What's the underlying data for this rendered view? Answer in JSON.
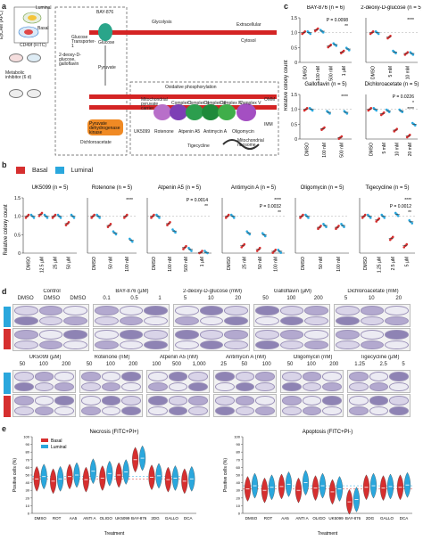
{
  "panel_labels": {
    "a": "a",
    "b": "b",
    "c": "c",
    "d": "d",
    "e": "e"
  },
  "panel_a": {
    "flow_labels": [
      "Luminal",
      "Basal",
      "CD49f (FITC)",
      "EpCAM (APC)"
    ],
    "side_labels": [
      "Metabolic inhibitor (6 d)"
    ],
    "membrane_labels": [
      "Extracellular",
      "Cytosol",
      "OMM",
      "IMM"
    ],
    "pathway_labels": [
      "Glycolysis",
      "Oxidative phosphorylation",
      "Pyruvate",
      "Glucose",
      "Glucose Transporter-1"
    ],
    "inhibitors": [
      "BAY-876",
      "2-deoxy-D-glucose, galloflavin",
      "Dichloroacetate",
      "UK5099",
      "Rotenone",
      "Atpenin A5",
      "Antimycin A",
      "Oligomycin",
      "Tigecycline"
    ],
    "complex_labels": [
      "Mitochondrial pyruvate carrier",
      "Complex I",
      "Complex II",
      "Complex III",
      "Complex IV",
      "Complex V",
      "Mitochondrial ribosome"
    ],
    "enzyme_label": "Pyruvate dehydrogenase kinase"
  },
  "legend": {
    "basal": "Basal",
    "luminal": "Luminal",
    "basal_color": "#d62f2f",
    "luminal_color": "#2aa7dd"
  },
  "chart_data": [
    {
      "id": "b",
      "type": "scatter",
      "ylabel": "Relative colony count",
      "ylim": [
        0,
        1.5
      ],
      "yticks": [
        "0",
        "0.5",
        "1.0",
        "1.5"
      ],
      "subplots": [
        {
          "title": "UK5099 (n = 5)",
          "categories": [
            "DMSO",
            "12.5 µM",
            "25 µM",
            "50 µM"
          ],
          "basal": [
            1.0,
            1.05,
            1.0,
            0.8
          ],
          "luminal": [
            1.0,
            1.0,
            1.0,
            1.0
          ],
          "annotations": []
        },
        {
          "title": "Rotenone (n = 5)",
          "categories": [
            "DMSO",
            "50 nM",
            "100 nM"
          ],
          "basal": [
            1.0,
            0.75,
            1.0
          ],
          "luminal": [
            1.0,
            0.55,
            0.35
          ],
          "annotations": [
            "****"
          ]
        },
        {
          "title": "Atpenin A5 (n = 5)",
          "categories": [
            "DMSO",
            "100 nM",
            "500 nM",
            "1 µM"
          ],
          "basal": [
            1.0,
            0.8,
            0.15,
            0.02
          ],
          "luminal": [
            1.0,
            0.6,
            0.1,
            0.02
          ],
          "annotations": [
            "P = 0.0014",
            "**"
          ]
        },
        {
          "title": "Antimycin A (n = 5)",
          "categories": [
            "DMSO",
            "25 nM",
            "50 nM",
            "100 nM"
          ],
          "basal": [
            1.0,
            0.2,
            0.1,
            0.05
          ],
          "luminal": [
            1.0,
            0.55,
            0.5,
            0.05
          ],
          "annotations": [
            "****",
            "P = 0.0032",
            "**"
          ]
        },
        {
          "title": "Oligomycin (n = 5)",
          "categories": [
            "DMSO",
            "50 nM",
            "100 nM"
          ],
          "basal": [
            1.0,
            0.7,
            0.7
          ],
          "luminal": [
            1.0,
            0.75,
            0.75
          ],
          "annotations": []
        },
        {
          "title": "Tigecycline (n = 5)",
          "categories": [
            "DMSO",
            "1.25 µM",
            "2.5 µM",
            "5 µM"
          ],
          "basal": [
            1.0,
            0.9,
            0.4,
            0.2
          ],
          "luminal": [
            1.0,
            1.0,
            1.05,
            0.85
          ],
          "annotations": [
            "****",
            "P = 0.0012",
            "**"
          ]
        }
      ]
    },
    {
      "id": "c",
      "type": "scatter",
      "ylabel": "Relative colony count",
      "ylim": [
        0,
        1.5
      ],
      "yticks": [
        "0",
        "0.5",
        "1.0",
        "1.5"
      ],
      "subplots": [
        {
          "title": "BAY-876 (n = 6)",
          "categories": [
            "DMSO",
            "100 nM",
            "500 nM",
            "1 µM"
          ],
          "basal": [
            1.0,
            1.1,
            0.55,
            0.35
          ],
          "luminal": [
            1.0,
            1.05,
            0.6,
            0.45
          ],
          "annotations": [
            "P = 0.0098",
            "**"
          ]
        },
        {
          "title": "2-deoxy-D-glucose (n = 5)",
          "categories": [
            "DMSO",
            "5 mM",
            "10 mM"
          ],
          "basal": [
            1.0,
            0.85,
            0.3
          ],
          "luminal": [
            1.0,
            0.35,
            0.3
          ],
          "annotations": [
            "****"
          ]
        },
        {
          "title": "Galloflavin (n = 5)",
          "categories": [
            "DMSO",
            "100 nM",
            "500 nM"
          ],
          "basal": [
            1.0,
            0.35,
            0.05
          ],
          "luminal": [
            1.0,
            0.9,
            0.9
          ],
          "annotations": [
            "****"
          ]
        },
        {
          "title": "Dichloroacetate (n = 5)",
          "categories": [
            "DMSO",
            "5 mM",
            "10 mM",
            "20 mM"
          ],
          "basal": [
            1.0,
            0.85,
            0.3,
            0.1
          ],
          "luminal": [
            1.0,
            0.95,
            0.95,
            0.5
          ],
          "annotations": [
            "P = 0.0226",
            "*",
            "****"
          ]
        }
      ]
    },
    {
      "id": "e",
      "type": "violin",
      "subplots": [
        {
          "title": "Necrosis (FITC+PI+)",
          "ylabel": "Positive cells (%)",
          "xlabel": "Treatment",
          "ylim": [
            0,
            100
          ],
          "yticks": [
            "0",
            "10",
            "20",
            "30",
            "40",
            "50",
            "60",
            "70",
            "80",
            "90",
            "100"
          ],
          "categories": [
            "DMSO",
            "ROT",
            "AA5",
            "ANTI A",
            "OLIGO",
            "UK5099",
            "BAY-876",
            "2DG",
            "GALLO",
            "DCA"
          ],
          "basal": [
            45,
            42,
            48,
            44,
            46,
            50,
            70,
            47,
            44,
            42
          ],
          "luminal": [
            48,
            45,
            50,
            55,
            52,
            54,
            72,
            49,
            46,
            45
          ]
        },
        {
          "title": "Apoptosis (FITC+PI-)",
          "ylabel": "Positive cells (%)",
          "xlabel": "Treatment",
          "ylim": [
            0,
            100
          ],
          "yticks": [
            "0",
            "10",
            "20",
            "30",
            "40",
            "50",
            "60",
            "70",
            "80",
            "90",
            "100"
          ],
          "categories": [
            "DMSO",
            "ROT",
            "AA5",
            "ANTI A",
            "OLIGO",
            "UK5099",
            "BAY-876",
            "2DG",
            "GALLO",
            "DCA"
          ],
          "basal": [
            32,
            30,
            35,
            30,
            33,
            28,
            15,
            34,
            33,
            34
          ],
          "luminal": [
            36,
            34,
            38,
            40,
            36,
            32,
            18,
            36,
            35,
            37
          ]
        }
      ]
    }
  ],
  "panel_d": {
    "row_labels": [
      "Luminal",
      "Basal"
    ],
    "top_groups": [
      {
        "name": "Control",
        "doses": [
          "DMSO",
          "DMSO",
          "DMSO"
        ]
      },
      {
        "name": "BAY-876 (µM)",
        "doses": [
          "0.1",
          "0.5",
          "1"
        ]
      },
      {
        "name": "2-deoxy-D-glucose (mM)",
        "doses": [
          "5",
          "10",
          "20"
        ]
      },
      {
        "name": "Galloflavin (µM)",
        "doses": [
          "50",
          "100",
          "200"
        ]
      },
      {
        "name": "Dichloroacetate (mM)",
        "doses": [
          "5",
          "10",
          "20"
        ]
      }
    ],
    "bottom_groups": [
      {
        "name": "UK5099 (µM)",
        "doses": [
          "50",
          "100",
          "200"
        ]
      },
      {
        "name": "Rotenone (nM)",
        "doses": [
          "50",
          "100",
          "200"
        ]
      },
      {
        "name": "Atpenin A5 (nM)",
        "doses": [
          "100",
          "500",
          "1,000"
        ]
      },
      {
        "name": "Antimycin A (nM)",
        "doses": [
          "25",
          "50",
          "100"
        ]
      },
      {
        "name": "Oligomycin (nM)",
        "doses": [
          "50",
          "100",
          "200"
        ]
      },
      {
        "name": "Tigecycline (µM)",
        "doses": [
          "1.25",
          "2.5",
          "5"
        ]
      }
    ]
  }
}
